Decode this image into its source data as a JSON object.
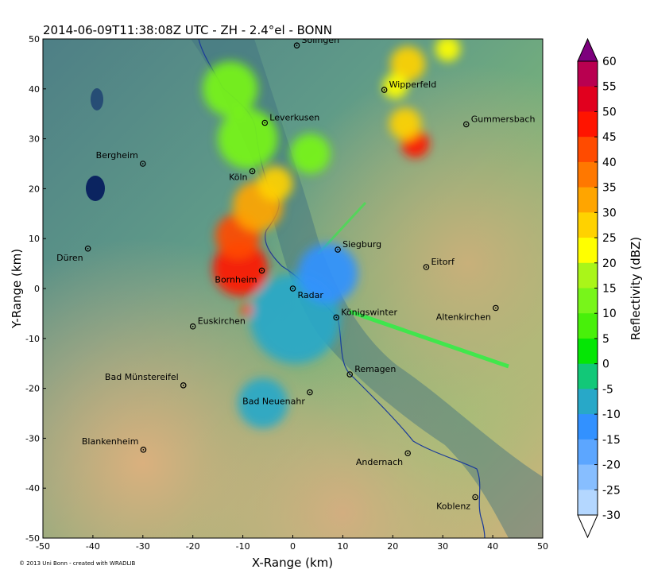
{
  "chart_data": {
    "type": "heatmap",
    "title": "2014-06-09T11:38:08Z UTC - ZH - 2.4$^\\circ$el - BONN",
    "title_display": "2014-06-09T11:38:08Z UTC - ZH - 2.4°el - BONN",
    "xlabel": "X-Range (km)",
    "ylabel": "Y-Range (km)",
    "xlim": [
      -50,
      50
    ],
    "ylim": [
      -50,
      50
    ],
    "x_ticks": [
      -50,
      -40,
      -30,
      -20,
      -10,
      0,
      10,
      20,
      30,
      40,
      50
    ],
    "y_ticks": [
      50,
      40,
      30,
      20,
      10,
      0,
      -10,
      -20,
      -30,
      -40,
      -50
    ],
    "colorbar": {
      "label": "Reflectivity (dBZ)",
      "ticks": [
        60,
        55,
        50,
        45,
        40,
        35,
        30,
        25,
        20,
        15,
        10,
        5,
        0,
        -5,
        -10,
        -15,
        -20,
        -25,
        -30
      ],
      "colors": [
        "#ffffff",
        "#b4d7ff",
        "#87beff",
        "#5ca6ff",
        "#3291ff",
        "#28a8c8",
        "#12c878",
        "#05e605",
        "#48f00a",
        "#78f51a",
        "#aaf519",
        "#ffff00",
        "#ffd200",
        "#ffa500",
        "#ff7800",
        "#ff4b00",
        "#ff1400",
        "#e1001e",
        "#b90050",
        "#7d007d"
      ]
    },
    "cities": [
      {
        "name": "Solingen",
        "x": 0.8,
        "y": 48.7
      },
      {
        "name": "Wipperfeld",
        "x": 18.3,
        "y": 39.8
      },
      {
        "name": "Leverkusen",
        "x": -5.6,
        "y": 33.2
      },
      {
        "name": "Gummersbach",
        "x": 34.7,
        "y": 32.9
      },
      {
        "name": "Bergheim",
        "x": -30.0,
        "y": 25.0
      },
      {
        "name": "Köln",
        "x": -8.1,
        "y": 23.5
      },
      {
        "name": "Düren",
        "x": -41.0,
        "y": 8.0
      },
      {
        "name": "Siegburg",
        "x": 9.0,
        "y": 7.8
      },
      {
        "name": "Eitorf",
        "x": 26.7,
        "y": 4.3
      },
      {
        "name": "Bornheim",
        "x": -6.2,
        "y": 3.6
      },
      {
        "name": "Radar",
        "x": 0.0,
        "y": 0.0
      },
      {
        "name": "Altenkirchen",
        "x": 40.6,
        "y": -3.9
      },
      {
        "name": "Königswinter",
        "x": 8.7,
        "y": -5.8
      },
      {
        "name": "Euskirchen",
        "x": -20.0,
        "y": -7.6
      },
      {
        "name": "Remagen",
        "x": 11.4,
        "y": -17.2
      },
      {
        "name": "Bad Münstereifel",
        "x": -21.9,
        "y": -19.4
      },
      {
        "name": "Bad Neuenahr",
        "x": 3.4,
        "y": -20.8
      },
      {
        "name": "Blankenheim",
        "x": -29.9,
        "y": -32.3
      },
      {
        "name": "Andernach",
        "x": 23.0,
        "y": -33.0
      },
      {
        "name": "Koblenz",
        "x": 36.5,
        "y": -41.8
      }
    ],
    "cells": [
      {
        "x": -10.5,
        "y": 4.0,
        "r": 5.5,
        "dbz": 45
      },
      {
        "x": -11.0,
        "y": 10.5,
        "r": 4.5,
        "dbz": 40
      },
      {
        "x": -7.0,
        "y": 16.5,
        "r": 5.0,
        "dbz": 30
      },
      {
        "x": -3.5,
        "y": 21.0,
        "r": 3.5,
        "dbz": 25
      },
      {
        "x": -9.0,
        "y": 30.0,
        "r": 6.0,
        "dbz": 12
      },
      {
        "x": -12.5,
        "y": 40.0,
        "r": 5.5,
        "dbz": 10
      },
      {
        "x": 3.5,
        "y": 27.0,
        "r": 4.0,
        "dbz": 12
      },
      {
        "x": 0.5,
        "y": -6.0,
        "r": 9.0,
        "dbz": -10
      },
      {
        "x": 7.0,
        "y": 3.0,
        "r": 6.0,
        "dbz": -12
      },
      {
        "x": -6.0,
        "y": -23.0,
        "r": 5.0,
        "dbz": -8
      },
      {
        "x": 24.5,
        "y": 29.0,
        "r": 2.8,
        "dbz": 48
      },
      {
        "x": 22.5,
        "y": 33.0,
        "r": 3.2,
        "dbz": 25
      },
      {
        "x": 23.0,
        "y": 45.0,
        "r": 3.5,
        "dbz": 25
      },
      {
        "x": 20.5,
        "y": 40.5,
        "r": 2.5,
        "dbz": 20
      },
      {
        "x": -9.2,
        "y": -4.3,
        "r": 1.2,
        "dbz": 40
      },
      {
        "x": 31.0,
        "y": 48.0,
        "r": 2.5,
        "dbz": 22
      }
    ],
    "copyright": "© 2013 Uni Bonn - created with WRADLIB"
  }
}
